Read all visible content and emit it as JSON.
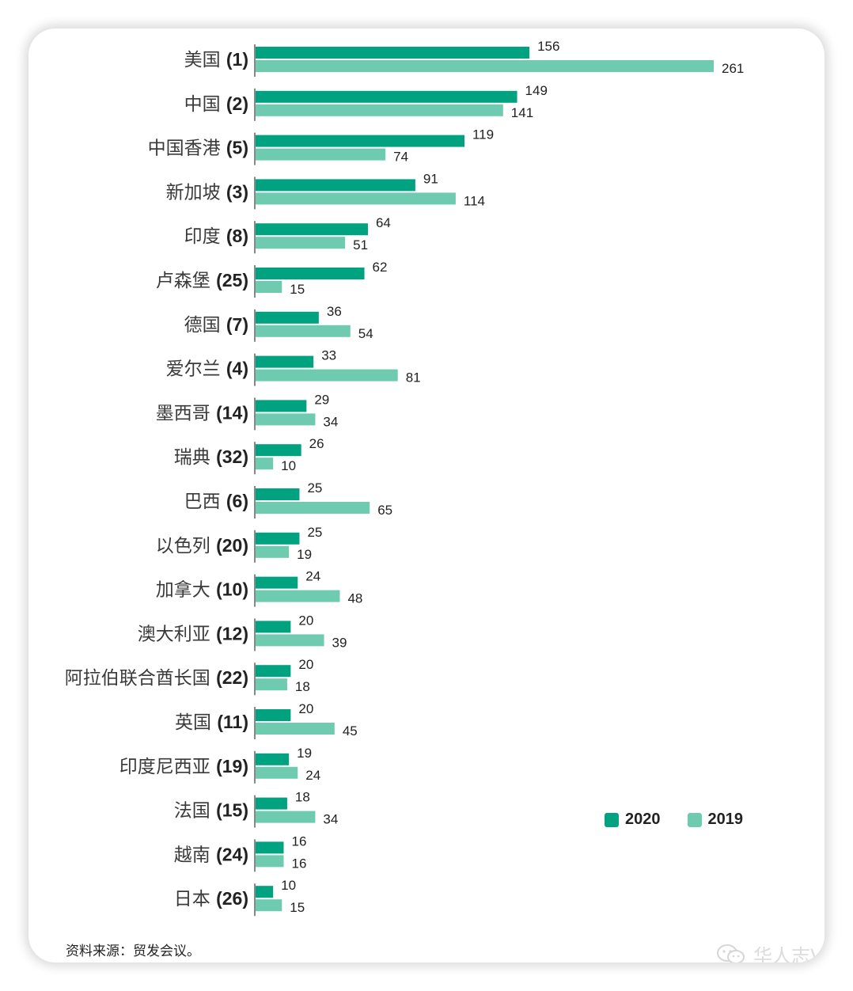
{
  "chart_data": {
    "type": "bar",
    "orientation": "horizontal",
    "categories": [
      {
        "name": "美国",
        "rank": "(1)"
      },
      {
        "name": "中国",
        "rank": "(2)"
      },
      {
        "name": "中国香港",
        "rank": "(5)"
      },
      {
        "name": "新加坡",
        "rank": "(3)"
      },
      {
        "name": "印度",
        "rank": "(8)"
      },
      {
        "name": "卢森堡",
        "rank": "(25)"
      },
      {
        "name": "德国",
        "rank": "(7)"
      },
      {
        "name": "爱尔兰",
        "rank": "(4)"
      },
      {
        "name": "墨西哥",
        "rank": "(14)"
      },
      {
        "name": "瑞典",
        "rank": "(32)"
      },
      {
        "name": "巴西",
        "rank": "(6)"
      },
      {
        "name": "以色列",
        "rank": "(20)"
      },
      {
        "name": "加拿大",
        "rank": "(10)"
      },
      {
        "name": "澳大利亚 ",
        "rank": "(12)"
      },
      {
        "name": "阿拉伯联合酋长国",
        "rank": "(22)"
      },
      {
        "name": "英国",
        "rank": "(11)"
      },
      {
        "name": "印度尼西亚",
        "rank": "(19)"
      },
      {
        "name": "法国",
        "rank": "(15)"
      },
      {
        "name": "越南",
        "rank": "(24)"
      },
      {
        "name": "日本",
        "rank": "(26)"
      }
    ],
    "series": [
      {
        "name": "2020",
        "color": "#00a27f",
        "values": [
          156,
          149,
          119,
          91,
          64,
          62,
          36,
          33,
          29,
          26,
          25,
          25,
          24,
          20,
          20,
          20,
          19,
          18,
          16,
          10
        ]
      },
      {
        "name": "2019",
        "color": "#6fcbb0",
        "values": [
          261,
          141,
          74,
          114,
          51,
          15,
          54,
          81,
          34,
          10,
          65,
          19,
          48,
          39,
          18,
          45,
          24,
          34,
          16,
          15
        ]
      }
    ],
    "xlim": [
      0,
      261
    ],
    "legend_position": "bottom-right",
    "grid": false
  },
  "footer": {
    "source": "资料来源：贸发会议。",
    "watermark": "华人志V"
  }
}
